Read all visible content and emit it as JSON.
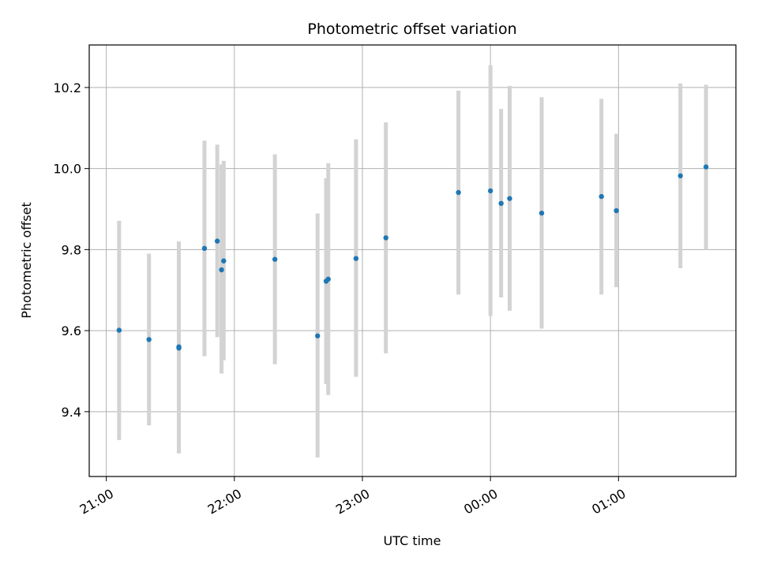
{
  "chart_data": {
    "type": "scatter",
    "title": "Photometric offset variation",
    "xlabel": "UTC time",
    "ylabel": "Photometric offset",
    "x_tick_labels": [
      "21:00",
      "22:00",
      "23:00",
      "00:00",
      "01:00"
    ],
    "y_tick_labels": [
      "9.4",
      "9.6",
      "9.8",
      "10.0",
      "10.2"
    ],
    "x_ticks_minutes": [
      0,
      60,
      120,
      180,
      240
    ],
    "y_ticks": [
      9.4,
      9.6,
      9.8,
      10.0,
      10.2
    ],
    "xlim_minutes": [
      -8,
      295
    ],
    "ylim": [
      9.24,
      10.305
    ],
    "grid": true,
    "colors": {
      "point": "#1f77b4",
      "errorbar": "#d3d3d3",
      "grid": "#b0b0b0"
    },
    "points": [
      {
        "x": "21:06",
        "y": 9.601,
        "low": 9.33,
        "high": 9.871
      },
      {
        "x": "21:20",
        "y": 9.578,
        "low": 9.366,
        "high": 9.79
      },
      {
        "x": "21:34",
        "y": 9.557,
        "low": 9.297,
        "high": 9.818
      },
      {
        "x": "21:34",
        "y": 9.56,
        "low": 9.3,
        "high": 9.82
      },
      {
        "x": "21:46",
        "y": 9.803,
        "low": 9.537,
        "high": 10.069
      },
      {
        "x": "21:52",
        "y": 9.821,
        "low": 9.584,
        "high": 10.059
      },
      {
        "x": "21:54",
        "y": 9.75,
        "low": 9.494,
        "high": 10.01
      },
      {
        "x": "21:55",
        "y": 9.772,
        "low": 9.527,
        "high": 10.019
      },
      {
        "x": "22:19",
        "y": 9.776,
        "low": 9.517,
        "high": 10.035
      },
      {
        "x": "22:39",
        "y": 9.587,
        "low": 9.287,
        "high": 9.889
      },
      {
        "x": "22:43",
        "y": 9.722,
        "low": 9.468,
        "high": 9.976
      },
      {
        "x": "22:44",
        "y": 9.727,
        "low": 9.441,
        "high": 10.013
      },
      {
        "x": "22:57",
        "y": 9.778,
        "low": 9.486,
        "high": 10.072
      },
      {
        "x": "23:11",
        "y": 9.829,
        "low": 9.544,
        "high": 10.114
      },
      {
        "x": "23:45",
        "y": 9.941,
        "low": 9.689,
        "high": 10.192
      },
      {
        "x": "00:00",
        "y": 9.945,
        "low": 9.636,
        "high": 10.255
      },
      {
        "x": "00:05",
        "y": 9.914,
        "low": 9.682,
        "high": 10.147
      },
      {
        "x": "00:09",
        "y": 9.926,
        "low": 9.649,
        "high": 10.204
      },
      {
        "x": "00:24",
        "y": 9.89,
        "low": 9.605,
        "high": 10.176
      },
      {
        "x": "00:52",
        "y": 9.931,
        "low": 9.689,
        "high": 10.172
      },
      {
        "x": "00:59",
        "y": 9.896,
        "low": 9.707,
        "high": 10.086
      },
      {
        "x": "01:29",
        "y": 9.982,
        "low": 9.754,
        "high": 10.21
      },
      {
        "x": "01:41",
        "y": 10.004,
        "low": 9.8,
        "high": 10.207
      }
    ]
  }
}
